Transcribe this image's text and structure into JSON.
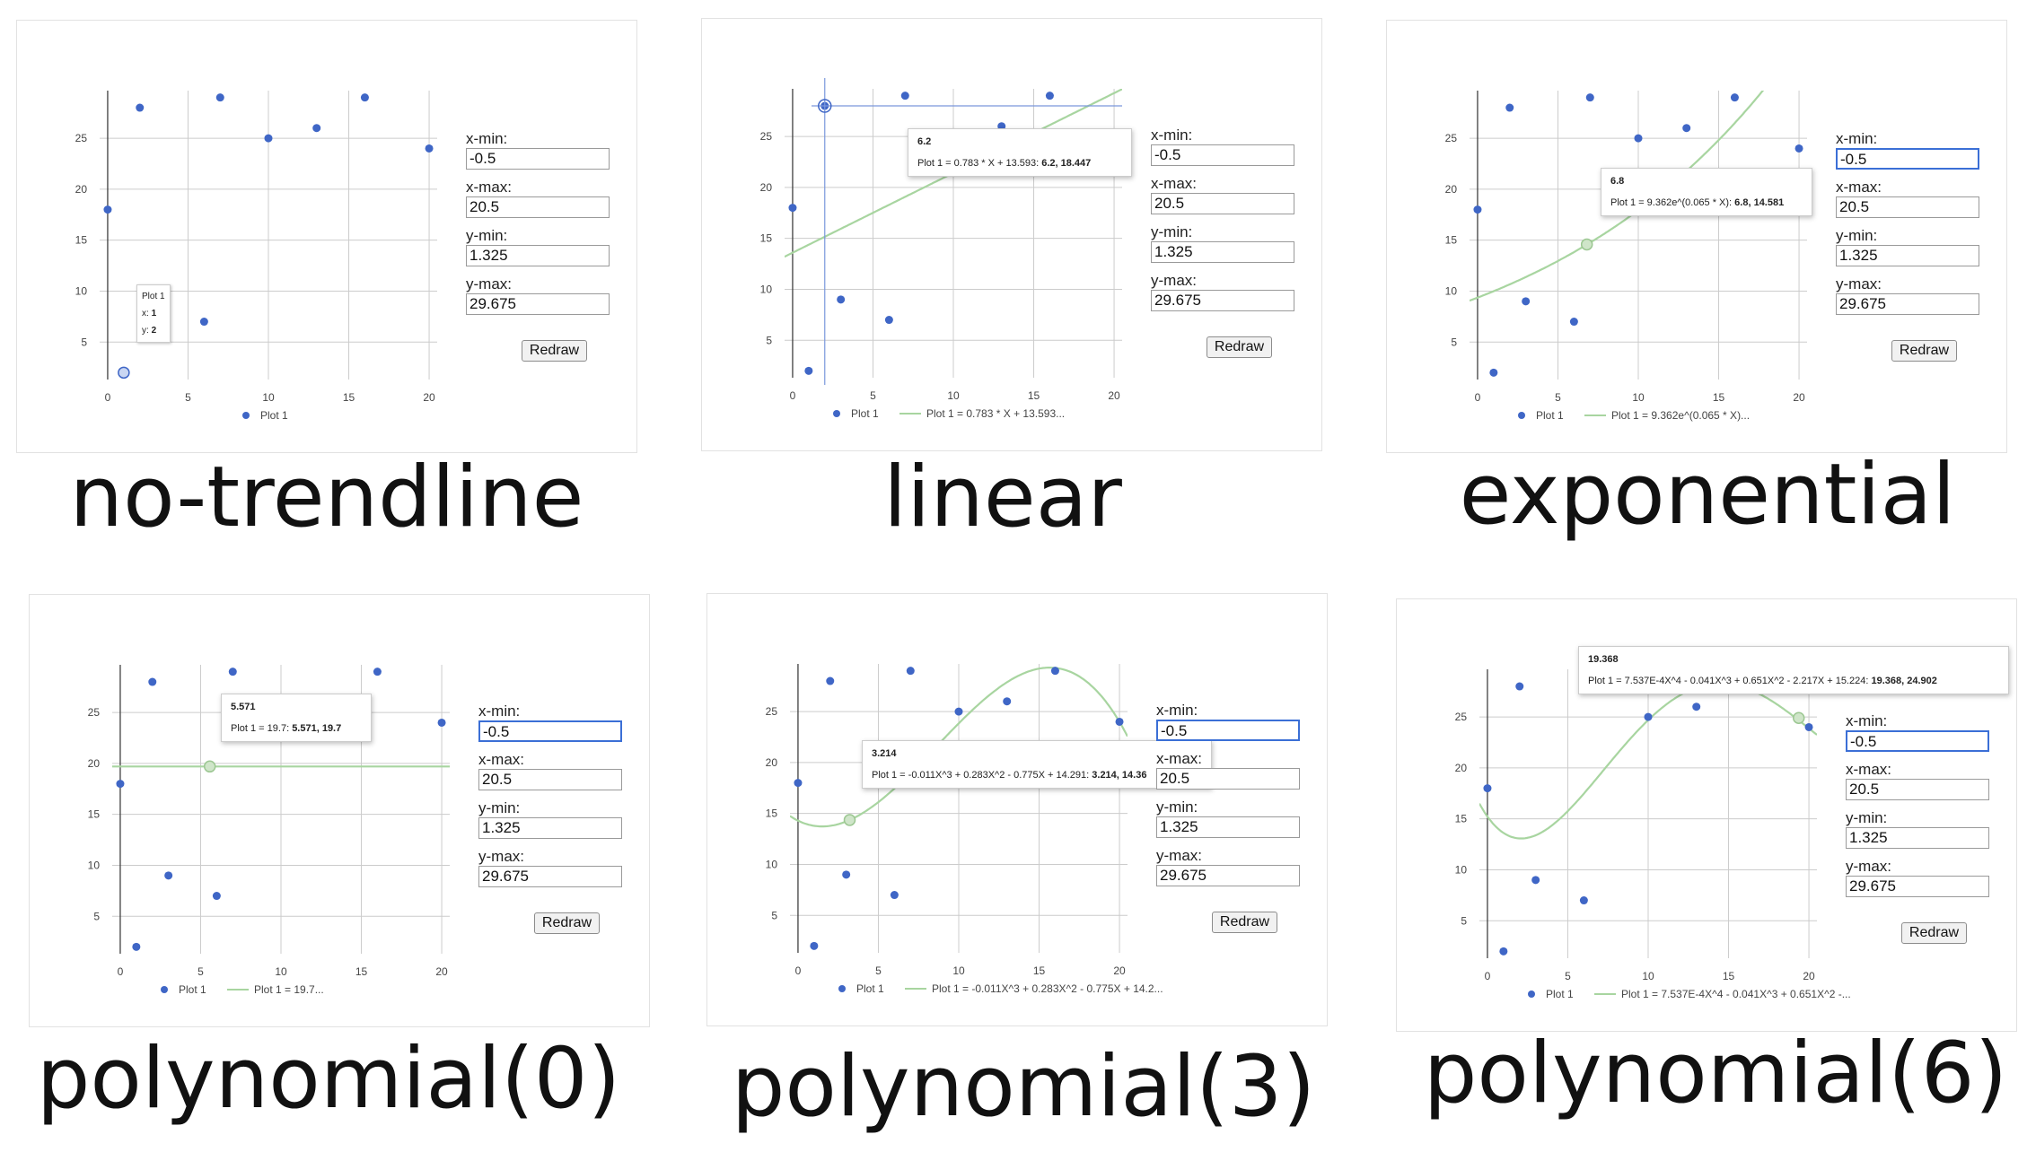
{
  "panels": [
    {
      "caption": "no-trendline",
      "controls": {
        "xmin_label": "x-min:",
        "xmin": "-0.5",
        "xmax_label": "x-max:",
        "xmax": "20.5",
        "ymin_label": "y-min:",
        "ymin": "1.325",
        "ymax_label": "y-max:",
        "ymax": "29.675",
        "redraw": "Redraw"
      },
      "legend": {
        "series": "Plot 1",
        "trend": ""
      },
      "tooltip": {
        "series": "Plot 1",
        "x_label": "x:",
        "x": "1",
        "y_label": "y:",
        "y": "2"
      }
    },
    {
      "caption": "linear",
      "controls": {
        "xmin_label": "x-min:",
        "xmin": "-0.5",
        "xmax_label": "x-max:",
        "xmax": "20.5",
        "ymin_label": "y-min:",
        "ymin": "1.325",
        "ymax_label": "y-max:",
        "ymax": "29.675",
        "redraw": "Redraw"
      },
      "legend": {
        "series": "Plot 1",
        "trend": "Plot 1 = 0.783 * X + 13.593..."
      },
      "tooltip": {
        "title": "6.2",
        "text": "Plot 1 = 0.783 * X + 13.593: ",
        "value": "6.2, 18.447"
      }
    },
    {
      "caption": "exponential",
      "controls": {
        "xmin_label": "x-min:",
        "xmin": "-0.5",
        "xmax_label": "x-max:",
        "xmax": "20.5",
        "ymin_label": "y-min:",
        "ymin": "1.325",
        "ymax_label": "y-max:",
        "ymax": "29.675",
        "redraw": "Redraw"
      },
      "legend": {
        "series": "Plot 1",
        "trend": "Plot 1 = 9.362e^(0.065 * X)..."
      },
      "tooltip": {
        "title": "6.8",
        "text": "Plot 1 = 9.362e^(0.065 * X): ",
        "value": "6.8, 14.581"
      }
    },
    {
      "caption": "polynomial(0)",
      "controls": {
        "xmin_label": "x-min:",
        "xmin": "-0.5",
        "xmax_label": "x-max:",
        "xmax": "20.5",
        "ymin_label": "y-min:",
        "ymin": "1.325",
        "ymax_label": "y-max:",
        "ymax": "29.675",
        "redraw": "Redraw"
      },
      "legend": {
        "series": "Plot 1",
        "trend": "Plot 1 = 19.7..."
      },
      "tooltip": {
        "title": "5.571",
        "text": "Plot 1 = 19.7: ",
        "value": "5.571, 19.7"
      }
    },
    {
      "caption": "polynomial(3)",
      "controls": {
        "xmin_label": "x-min:",
        "xmin": "-0.5",
        "xmax_label": "x-max:",
        "xmax": "20.5",
        "ymin_label": "y-min:",
        "ymin": "1.325",
        "ymax_label": "y-max:",
        "ymax": "29.675",
        "redraw": "Redraw"
      },
      "legend": {
        "series": "Plot 1",
        "trend": "Plot 1 = -0.011X^3 + 0.283X^2 - 0.775X + 14.2..."
      },
      "tooltip": {
        "title": "3.214",
        "text": "Plot 1 = -0.011X^3 + 0.283X^2 - 0.775X + 14.291: ",
        "value": "3.214, 14.36"
      }
    },
    {
      "caption": "polynomial(6)",
      "controls": {
        "xmin_label": "x-min:",
        "xmin": "-0.5",
        "xmax_label": "x-max:",
        "xmax": "20.5",
        "ymin_label": "y-min:",
        "ymin": "1.325",
        "ymax_label": "y-max:",
        "ymax": "29.675",
        "redraw": "Redraw"
      },
      "legend": {
        "series": "Plot 1",
        "trend": "Plot 1 = 7.537E-4X^4 - 0.041X^3 + 0.651X^2 -..."
      },
      "tooltip": {
        "title": "19.368",
        "text": "Plot 1 = 7.537E-4X^4 - 0.041X^3 + 0.651X^2 - 2.217X + 15.224: ",
        "value": "19.368, 24.902"
      }
    }
  ],
  "chart_data": [
    {
      "type": "scatter",
      "series": [
        {
          "name": "Plot 1",
          "x": [
            0,
            1,
            2,
            3,
            6,
            7,
            10,
            13,
            16,
            20
          ],
          "y": [
            18,
            2,
            28,
            9,
            7,
            29,
            25,
            26,
            29,
            24
          ]
        }
      ],
      "trendline": "none",
      "xticks": [
        0,
        5,
        10,
        15,
        20
      ],
      "yticks": [
        5,
        10,
        15,
        20,
        25
      ],
      "xlim": [
        -0.5,
        20.5
      ],
      "ylim": [
        1.325,
        29.675
      ],
      "grid": true,
      "legend_position": "bottom",
      "colors": {
        "points": "#3f66c6",
        "trend": "#a8d5a0"
      }
    },
    {
      "type": "scatter",
      "series": [
        {
          "name": "Plot 1",
          "x": [
            0,
            1,
            2,
            3,
            6,
            7,
            10,
            13,
            16,
            20
          ],
          "y": [
            18,
            2,
            28,
            9,
            7,
            29,
            25,
            26,
            29,
            24
          ]
        }
      ],
      "trendline": "linear",
      "trend_coefficients": {
        "slope": 0.783,
        "intercept": 13.593
      },
      "xticks": [
        0,
        5,
        10,
        15,
        20
      ],
      "yticks": [
        5,
        10,
        15,
        20,
        25
      ],
      "xlim": [
        -0.5,
        20.5
      ],
      "ylim": [
        1.325,
        29.675
      ],
      "grid": true,
      "legend_position": "bottom",
      "colors": {
        "points": "#3f66c6",
        "trend": "#a8d5a0"
      }
    },
    {
      "type": "scatter",
      "series": [
        {
          "name": "Plot 1",
          "x": [
            0,
            1,
            2,
            3,
            6,
            7,
            10,
            13,
            16,
            20
          ],
          "y": [
            18,
            2,
            28,
            9,
            7,
            29,
            25,
            26,
            29,
            24
          ]
        }
      ],
      "trendline": "exponential",
      "trend_coefficients": {
        "a": 9.362,
        "b": 0.065
      },
      "xticks": [
        0,
        5,
        10,
        15,
        20
      ],
      "yticks": [
        5,
        10,
        15,
        20,
        25
      ],
      "xlim": [
        -0.5,
        20.5
      ],
      "ylim": [
        1.325,
        29.675
      ],
      "grid": true,
      "legend_position": "bottom",
      "colors": {
        "points": "#3f66c6",
        "trend": "#a8d5a0"
      }
    },
    {
      "type": "scatter",
      "series": [
        {
          "name": "Plot 1",
          "x": [
            0,
            1,
            2,
            3,
            6,
            7,
            10,
            13,
            16,
            20
          ],
          "y": [
            18,
            2,
            28,
            9,
            7,
            29,
            25,
            26,
            29,
            24
          ]
        }
      ],
      "trendline": "polynomial",
      "degree": 0,
      "trend_coefficients": [
        19.7
      ],
      "xticks": [
        0,
        5,
        10,
        15,
        20
      ],
      "yticks": [
        5,
        10,
        15,
        20,
        25
      ],
      "xlim": [
        -0.5,
        20.5
      ],
      "ylim": [
        1.325,
        29.675
      ],
      "grid": true,
      "legend_position": "bottom",
      "colors": {
        "points": "#3f66c6",
        "trend": "#a8d5a0"
      }
    },
    {
      "type": "scatter",
      "series": [
        {
          "name": "Plot 1",
          "x": [
            0,
            1,
            2,
            3,
            6,
            7,
            10,
            13,
            16,
            20
          ],
          "y": [
            18,
            2,
            28,
            9,
            7,
            29,
            25,
            26,
            29,
            24
          ]
        }
      ],
      "trendline": "polynomial",
      "degree": 3,
      "trend_coefficients": [
        14.291,
        -0.775,
        0.283,
        -0.011
      ],
      "xticks": [
        0,
        5,
        10,
        15,
        20
      ],
      "yticks": [
        5,
        10,
        15,
        20,
        25
      ],
      "xlim": [
        -0.5,
        20.5
      ],
      "ylim": [
        1.325,
        29.675
      ],
      "grid": true,
      "legend_position": "bottom",
      "colors": {
        "points": "#3f66c6",
        "trend": "#a8d5a0"
      }
    },
    {
      "type": "scatter",
      "series": [
        {
          "name": "Plot 1",
          "x": [
            0,
            1,
            2,
            3,
            6,
            7,
            10,
            13,
            16,
            20
          ],
          "y": [
            18,
            2,
            28,
            9,
            7,
            29,
            25,
            26,
            29,
            24
          ]
        }
      ],
      "trendline": "polynomial",
      "degree": 6,
      "trend_coefficients": [
        15.224,
        -2.217,
        0.651,
        -0.041,
        0.0007537
      ],
      "xticks": [
        0,
        5,
        10,
        15,
        20
      ],
      "yticks": [
        5,
        10,
        15,
        20,
        25
      ],
      "xlim": [
        -0.5,
        20.5
      ],
      "ylim": [
        1.325,
        29.675
      ],
      "grid": true,
      "legend_position": "bottom",
      "colors": {
        "points": "#3f66c6",
        "trend": "#a8d5a0"
      }
    }
  ]
}
